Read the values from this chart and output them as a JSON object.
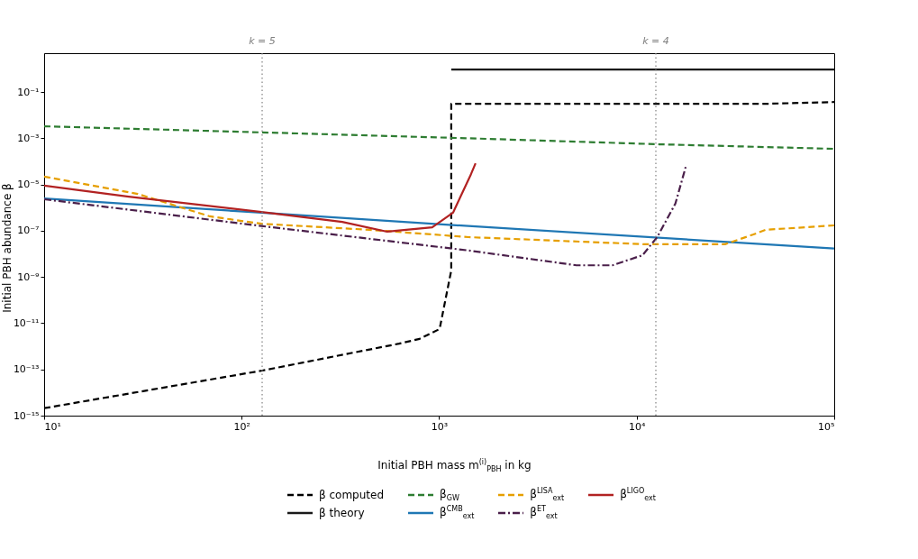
{
  "chart_data": {
    "type": "line",
    "xlabel": "Initial PBH mass m$^{(i)}$$_{PBH}$ in kg",
    "ylabel": "Initial PBH abundance β",
    "log": "xy",
    "grid": false,
    "legend": "bottom",
    "xlim": [
      10,
      100000
    ],
    "ylim": [
      1e-15,
      4.8
    ],
    "xticks": [
      {
        "value": 10,
        "label": "10¹"
      },
      {
        "value": 100,
        "label": "10²"
      },
      {
        "value": 1000,
        "label": "10³"
      },
      {
        "value": 10000,
        "label": "10⁴"
      },
      {
        "value": 100000,
        "label": "10⁵"
      }
    ],
    "yticks": [
      {
        "value": 1e-15,
        "label": "10⁻¹⁵"
      },
      {
        "value": 1e-13,
        "label": "10⁻¹³"
      },
      {
        "value": 1e-11,
        "label": "10⁻¹¹"
      },
      {
        "value": 1e-09,
        "label": "10⁻⁹"
      },
      {
        "value": 1e-07,
        "label": "10⁻⁷"
      },
      {
        "value": 1e-05,
        "label": "10⁻⁵"
      },
      {
        "value": 0.001,
        "label": "10⁻³"
      },
      {
        "value": 0.1,
        "label": "10⁻¹"
      }
    ],
    "ref_lines": [
      {
        "axis": "x",
        "value": 127,
        "color": "#808080",
        "line_style": "dotted"
      },
      {
        "axis": "x",
        "value": 12500,
        "color": "#808080",
        "line_style": "dotted"
      }
    ],
    "annotations": [
      "k = 5",
      "k = 4"
    ],
    "series": [
      {
        "name": "β computed",
        "color": "#000000",
        "line_style": "dashed",
        "x": [
          10,
          127,
          627,
          796,
          1005,
          1151,
          1151,
          45000,
          100000
        ],
        "values": [
          2.1e-15,
          8.9e-14,
          1.3e-12,
          2.1e-12,
          5.6e-12,
          1.9e-09,
          0.031,
          0.031,
          0.037
        ]
      },
      {
        "name": "β theory",
        "color": "#1a1a1a",
        "line_style": "solid",
        "x": [
          1151,
          100000
        ],
        "values": [
          0.94,
          0.94
        ]
      },
      {
        "name": "β$_{GW}$",
        "color": "#2e7d32",
        "line_style": "dashed",
        "x": [
          10,
          126,
          1406,
          13000,
          100000
        ],
        "values": [
          0.0033,
          0.0018,
          0.001,
          0.00055,
          0.00035
        ]
      },
      {
        "name": "β$^{CMB}$$_{ext}$",
        "color": "#1f77b4",
        "line_style": "solid",
        "x": [
          10,
          126,
          1406,
          100000
        ],
        "values": [
          2.5e-06,
          6e-07,
          1.6e-07,
          1.7e-08
        ]
      },
      {
        "name": "β$^{LISA}$$_{ext}$",
        "color": "#e69f00",
        "line_style": "dashed",
        "x": [
          10,
          29.8,
          69,
          126,
          443,
          1406,
          11000,
          28000,
          39000,
          45000,
          100000
        ],
        "values": [
          2.2e-05,
          3.9e-06,
          4.2e-07,
          2e-07,
          1.1e-07,
          5.3e-08,
          2.6e-08,
          2.6e-08,
          6.9e-08,
          1.1e-07,
          1.7e-07
        ]
      },
      {
        "name": "β$^{ET}$$_{ext}$",
        "color": "#4a1f4a",
        "line_style": "dashdot",
        "x": [
          10,
          126,
          1406,
          4950,
          7530,
          10700,
          12700,
          15700,
          17700
        ],
        "values": [
          2.3e-06,
          1.6e-07,
          1.4e-08,
          3.2e-09,
          3.2e-09,
          8.7e-09,
          5.3e-08,
          1.5e-06,
          5.7e-05
        ]
      },
      {
        "name": "β$^{LIGO}$$_{ext}$",
        "color": "#b22222",
        "line_style": "solid",
        "x": [
          10,
          26.8,
          126,
          323,
          546,
          922,
          1175,
          1449,
          1528
        ],
        "values": [
          8.9e-06,
          3e-06,
          6.5e-07,
          2.4e-07,
          9.1e-08,
          1.4e-07,
          6e-07,
          2.8e-05,
          8.3e-05
        ]
      }
    ]
  }
}
